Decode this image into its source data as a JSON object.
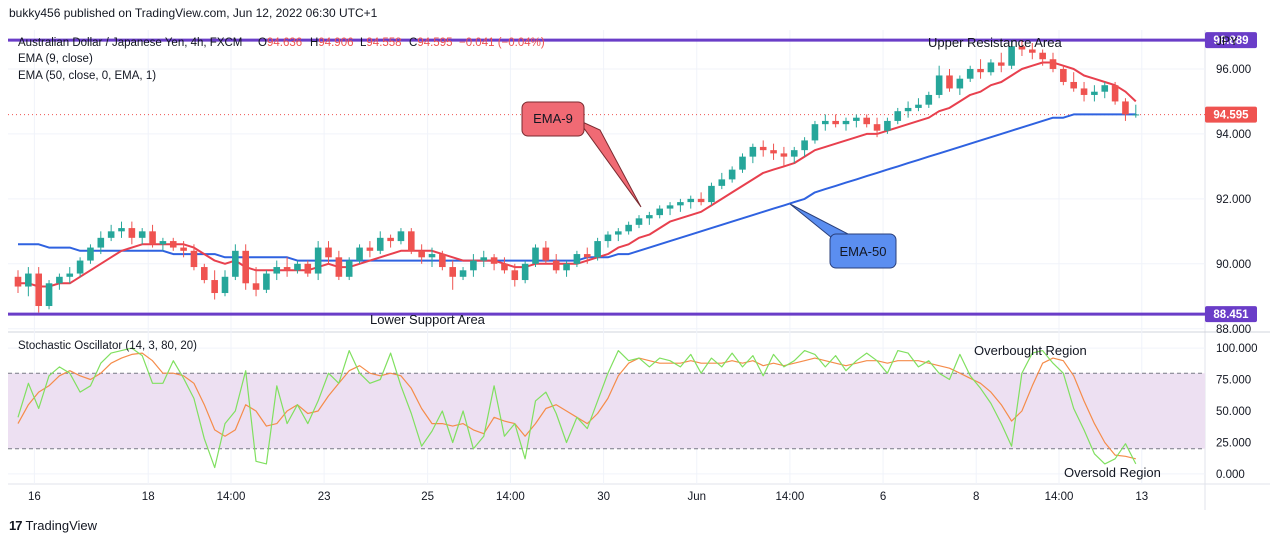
{
  "header": {
    "published": "bukky456 published on TradingView.com, Jun 12, 2022 06:30 UTC+1"
  },
  "footer": {
    "brand": "TradingView",
    "logo_glyph": "17"
  },
  "symbol_info": {
    "name": "Australian Dollar / Japanese Yen, 4h, FXCM",
    "open_label": "O",
    "open": "94.636",
    "high_label": "H",
    "high": "94.906",
    "low_label": "L",
    "low": "94.558",
    "close_label": "C",
    "close": "94.595",
    "change": "−0.041 (−0.04%)"
  },
  "indicators": {
    "ema9_label": "EMA (9, close)",
    "ema50_label": "EMA (50, close, 0, EMA, 1)",
    "stoch_label": "Stochastic Oscillator (14, 3, 80, 20)"
  },
  "colors": {
    "bull": "#26a69a",
    "bear": "#ef5350",
    "ema9": "#e8404e",
    "ema50": "#2f62e0",
    "level": "#6a3dc8",
    "stoch_k": "#80e060",
    "stoch_d": "#f58c4a",
    "zone": "#ede0f2",
    "label_red": "#f06a74",
    "label_blue": "#5b8ef0"
  },
  "chart_data": [
    {
      "type": "candlestick",
      "currency": "JPY",
      "ylim": [
        87.9,
        97.2
      ],
      "y_ticks": [
        "96.000",
        "94.000",
        "92.000",
        "90.000",
        "88.000"
      ],
      "x_ticks": [
        "16",
        "18",
        "14:00",
        "23",
        "25",
        "14:00",
        "30",
        "Jun",
        "14:00",
        "6",
        "8",
        "14:00",
        "13"
      ],
      "levels": [
        {
          "value": 96.889,
          "label": "96.889",
          "annotation": "Upper Resistance Area"
        },
        {
          "value": 88.451,
          "label": "88.451",
          "annotation": "Lower Support Area"
        }
      ],
      "last_price": {
        "value": 94.595,
        "label": "94.595"
      },
      "annotations": {
        "ema9": "EMA-9",
        "ema50": "EMA-50"
      },
      "candles": [
        [
          89.6,
          89.8,
          89.1,
          89.3
        ],
        [
          89.3,
          89.9,
          89.0,
          89.7
        ],
        [
          89.7,
          89.9,
          88.5,
          88.7
        ],
        [
          88.7,
          89.5,
          88.6,
          89.4
        ],
        [
          89.4,
          89.7,
          89.2,
          89.6
        ],
        [
          89.6,
          89.9,
          89.4,
          89.7
        ],
        [
          89.7,
          90.2,
          89.6,
          90.1
        ],
        [
          90.1,
          90.6,
          90.0,
          90.5
        ],
        [
          90.5,
          91.0,
          90.3,
          90.8
        ],
        [
          90.8,
          91.2,
          90.7,
          91.0
        ],
        [
          91.0,
          91.3,
          90.8,
          91.1
        ],
        [
          91.1,
          91.3,
          90.6,
          90.8
        ],
        [
          90.8,
          91.1,
          90.6,
          91.0
        ],
        [
          91.0,
          91.2,
          90.5,
          90.6
        ],
        [
          90.6,
          90.8,
          90.4,
          90.7
        ],
        [
          90.7,
          90.8,
          90.4,
          90.5
        ],
        [
          90.5,
          90.7,
          90.2,
          90.4
        ],
        [
          90.4,
          90.6,
          89.8,
          89.9
        ],
        [
          89.9,
          90.0,
          89.4,
          89.5
        ],
        [
          89.5,
          89.8,
          88.9,
          89.1
        ],
        [
          89.1,
          89.8,
          89.0,
          89.6
        ],
        [
          89.6,
          90.6,
          89.5,
          90.4
        ],
        [
          90.4,
          90.6,
          89.2,
          89.4
        ],
        [
          89.4,
          89.9,
          89.0,
          89.2
        ],
        [
          89.2,
          89.8,
          89.1,
          89.7
        ],
        [
          89.7,
          90.1,
          89.5,
          89.9
        ],
        [
          89.9,
          90.2,
          89.6,
          89.8
        ],
        [
          89.8,
          90.1,
          89.7,
          90.0
        ],
        [
          90.0,
          90.1,
          89.6,
          89.7
        ],
        [
          89.7,
          90.7,
          89.5,
          90.5
        ],
        [
          90.5,
          90.7,
          90.0,
          90.2
        ],
        [
          90.2,
          90.4,
          89.5,
          89.6
        ],
        [
          89.6,
          90.2,
          89.5,
          90.1
        ],
        [
          90.1,
          90.6,
          90.0,
          90.5
        ],
        [
          90.5,
          90.7,
          90.2,
          90.4
        ],
        [
          90.4,
          91.0,
          90.3,
          90.8
        ],
        [
          90.8,
          90.9,
          90.5,
          90.7
        ],
        [
          90.7,
          91.1,
          90.6,
          91.0
        ],
        [
          91.0,
          91.1,
          90.3,
          90.4
        ],
        [
          90.4,
          90.6,
          90.0,
          90.2
        ],
        [
          90.2,
          90.5,
          89.9,
          90.3
        ],
        [
          90.3,
          90.4,
          89.8,
          89.9
        ],
        [
          89.9,
          90.1,
          89.2,
          89.6
        ],
        [
          89.6,
          89.9,
          89.5,
          89.8
        ],
        [
          89.8,
          90.3,
          89.6,
          90.1
        ],
        [
          90.1,
          90.4,
          89.9,
          90.2
        ],
        [
          90.2,
          90.3,
          89.8,
          90.0
        ],
        [
          90.0,
          90.2,
          89.7,
          89.8
        ],
        [
          89.8,
          90.0,
          89.3,
          89.5
        ],
        [
          89.5,
          90.1,
          89.4,
          90.0
        ],
        [
          90.0,
          90.6,
          89.9,
          90.5
        ],
        [
          90.5,
          90.7,
          90.0,
          90.1
        ],
        [
          90.1,
          90.3,
          89.7,
          89.8
        ],
        [
          89.8,
          90.1,
          89.6,
          90.0
        ],
        [
          90.0,
          90.4,
          89.9,
          90.3
        ],
        [
          90.3,
          90.5,
          90.0,
          90.2
        ],
        [
          90.2,
          90.8,
          90.1,
          90.7
        ],
        [
          90.7,
          91.0,
          90.5,
          90.9
        ],
        [
          90.9,
          91.1,
          90.7,
          91.0
        ],
        [
          91.0,
          91.3,
          90.9,
          91.2
        ],
        [
          91.2,
          91.5,
          91.1,
          91.4
        ],
        [
          91.4,
          91.6,
          91.2,
          91.5
        ],
        [
          91.5,
          91.8,
          91.4,
          91.7
        ],
        [
          91.7,
          91.9,
          91.5,
          91.8
        ],
        [
          91.8,
          92.0,
          91.6,
          91.9
        ],
        [
          91.9,
          92.1,
          91.7,
          92.0
        ],
        [
          92.0,
          92.2,
          91.8,
          91.9
        ],
        [
          91.9,
          92.5,
          91.8,
          92.4
        ],
        [
          92.4,
          92.8,
          92.3,
          92.6
        ],
        [
          92.6,
          93.0,
          92.5,
          92.9
        ],
        [
          92.9,
          93.4,
          92.8,
          93.3
        ],
        [
          93.3,
          93.7,
          93.1,
          93.6
        ],
        [
          93.6,
          93.8,
          93.3,
          93.5
        ],
        [
          93.5,
          93.7,
          93.2,
          93.4
        ],
        [
          93.4,
          93.6,
          93.0,
          93.3
        ],
        [
          93.3,
          93.6,
          93.1,
          93.5
        ],
        [
          93.5,
          93.9,
          93.3,
          93.8
        ],
        [
          93.8,
          94.4,
          93.7,
          94.3
        ],
        [
          94.3,
          94.6,
          94.1,
          94.4
        ],
        [
          94.4,
          94.6,
          94.2,
          94.3
        ],
        [
          94.3,
          94.5,
          94.1,
          94.4
        ],
        [
          94.4,
          94.6,
          94.2,
          94.5
        ],
        [
          94.5,
          94.6,
          94.2,
          94.3
        ],
        [
          94.3,
          94.5,
          93.9,
          94.1
        ],
        [
          94.1,
          94.5,
          94.0,
          94.4
        ],
        [
          94.4,
          94.8,
          94.3,
          94.7
        ],
        [
          94.7,
          95.0,
          94.5,
          94.8
        ],
        [
          94.8,
          95.1,
          94.7,
          94.9
        ],
        [
          94.9,
          95.3,
          94.8,
          95.2
        ],
        [
          95.2,
          96.1,
          95.1,
          95.8
        ],
        [
          95.8,
          96.0,
          95.3,
          95.4
        ],
        [
          95.4,
          95.8,
          95.2,
          95.7
        ],
        [
          95.7,
          96.1,
          95.6,
          96.0
        ],
        [
          96.0,
          96.3,
          95.7,
          95.9
        ],
        [
          95.9,
          96.3,
          95.8,
          96.2
        ],
        [
          96.2,
          96.5,
          95.9,
          96.1
        ],
        [
          96.1,
          96.9,
          96.0,
          96.7
        ],
        [
          96.7,
          96.9,
          96.4,
          96.6
        ],
        [
          96.6,
          96.8,
          96.3,
          96.5
        ],
        [
          96.5,
          96.6,
          96.1,
          96.3
        ],
        [
          96.3,
          96.5,
          95.9,
          96.0
        ],
        [
          96.0,
          96.1,
          95.5,
          95.6
        ],
        [
          95.6,
          95.9,
          95.3,
          95.4
        ],
        [
          95.4,
          95.6,
          95.0,
          95.2
        ],
        [
          95.2,
          95.5,
          95.0,
          95.3
        ],
        [
          95.3,
          95.6,
          95.1,
          95.5
        ],
        [
          95.5,
          95.6,
          94.9,
          95.0
        ],
        [
          95.0,
          95.1,
          94.4,
          94.6
        ],
        [
          94.6,
          94.9,
          94.5,
          94.6
        ]
      ],
      "ema9": [
        89.4,
        89.4,
        89.3,
        89.3,
        89.4,
        89.4,
        89.6,
        89.8,
        90.0,
        90.2,
        90.4,
        90.5,
        90.6,
        90.6,
        90.6,
        90.6,
        90.6,
        90.5,
        90.3,
        90.1,
        90.0,
        90.1,
        89.9,
        89.8,
        89.8,
        89.8,
        89.8,
        89.8,
        89.8,
        89.9,
        90.0,
        89.9,
        89.9,
        90.0,
        90.1,
        90.2,
        90.3,
        90.4,
        90.4,
        90.4,
        90.4,
        90.3,
        90.2,
        90.1,
        90.1,
        90.1,
        90.1,
        90.0,
        89.9,
        89.9,
        90.0,
        90.0,
        90.0,
        90.0,
        90.0,
        90.1,
        90.2,
        90.3,
        90.5,
        90.6,
        90.8,
        90.9,
        91.1,
        91.3,
        91.4,
        91.5,
        91.6,
        91.8,
        92.0,
        92.2,
        92.4,
        92.6,
        92.8,
        92.9,
        93.0,
        93.1,
        93.3,
        93.5,
        93.6,
        93.7,
        93.8,
        93.9,
        94.0,
        94.0,
        94.1,
        94.2,
        94.3,
        94.4,
        94.5,
        94.7,
        94.8,
        95.0,
        95.2,
        95.3,
        95.5,
        95.6,
        95.8,
        96.0,
        96.1,
        96.2,
        96.2,
        96.1,
        96.0,
        95.8,
        95.7,
        95.6,
        95.5,
        95.3,
        95.0
      ],
      "ema50": [
        90.6,
        90.6,
        90.6,
        90.5,
        90.5,
        90.5,
        90.4,
        90.4,
        90.4,
        90.4,
        90.4,
        90.4,
        90.4,
        90.4,
        90.4,
        90.3,
        90.3,
        90.3,
        90.3,
        90.3,
        90.2,
        90.2,
        90.2,
        90.2,
        90.2,
        90.2,
        90.2,
        90.1,
        90.1,
        90.1,
        90.1,
        90.1,
        90.1,
        90.1,
        90.1,
        90.1,
        90.1,
        90.1,
        90.1,
        90.1,
        90.1,
        90.1,
        90.1,
        90.1,
        90.1,
        90.1,
        90.1,
        90.1,
        90.1,
        90.1,
        90.1,
        90.1,
        90.1,
        90.1,
        90.1,
        90.2,
        90.2,
        90.2,
        90.3,
        90.3,
        90.4,
        90.5,
        90.6,
        90.7,
        90.8,
        90.9,
        91.0,
        91.1,
        91.2,
        91.3,
        91.4,
        91.5,
        91.6,
        91.7,
        91.8,
        91.9,
        92.0,
        92.2,
        92.3,
        92.4,
        92.5,
        92.6,
        92.7,
        92.8,
        92.9,
        93.0,
        93.1,
        93.2,
        93.3,
        93.4,
        93.5,
        93.6,
        93.7,
        93.8,
        93.9,
        94.0,
        94.1,
        94.2,
        94.3,
        94.4,
        94.5,
        94.5,
        94.6,
        94.6,
        94.6,
        94.6,
        94.6,
        94.6,
        94.6
      ]
    },
    {
      "type": "line",
      "name": "Stochastic Oscillator (14, 3, 80, 20)",
      "ylim": [
        -8,
        108
      ],
      "y_ticks": [
        "100.000",
        "75.000",
        "50.000",
        "25.000",
        "0.000"
      ],
      "bands": {
        "upper": 80,
        "lower": 20
      },
      "annotations": {
        "overbought": "Overbought Region",
        "oversold": "Oversold Region"
      },
      "k": [
        45,
        72,
        52,
        78,
        85,
        80,
        65,
        70,
        88,
        96,
        98,
        100,
        94,
        72,
        72,
        90,
        76,
        60,
        28,
        5,
        40,
        50,
        82,
        10,
        8,
        70,
        40,
        55,
        40,
        58,
        80,
        72,
        98,
        80,
        72,
        75,
        96,
        70,
        48,
        22,
        34,
        50,
        25,
        50,
        20,
        30,
        70,
        30,
        40,
        12,
        58,
        65,
        48,
        25,
        45,
        36,
        58,
        80,
        98,
        90,
        92,
        85,
        92,
        90,
        85,
        95,
        80,
        92,
        85,
        96,
        85,
        94,
        78,
        95,
        85,
        90,
        98,
        95,
        85,
        94,
        82,
        90,
        96,
        90,
        80,
        98,
        96,
        85,
        90,
        80,
        75,
        95,
        78,
        68,
        56,
        40,
        22,
        80,
        96,
        98,
        88,
        80,
        52,
        35,
        16,
        8,
        12,
        24,
        8
      ],
      "d": [
        40,
        55,
        65,
        70,
        78,
        82,
        78,
        75,
        80,
        88,
        92,
        95,
        96,
        90,
        80,
        80,
        78,
        72,
        55,
        35,
        30,
        35,
        55,
        50,
        38,
        40,
        50,
        55,
        48,
        50,
        62,
        72,
        82,
        86,
        80,
        78,
        80,
        78,
        68,
        52,
        40,
        40,
        38,
        40,
        35,
        32,
        45,
        42,
        40,
        30,
        40,
        52,
        55,
        50,
        45,
        40,
        48,
        60,
        78,
        88,
        92,
        90,
        88,
        88,
        88,
        90,
        88,
        88,
        88,
        90,
        88,
        90,
        86,
        88,
        86,
        88,
        90,
        92,
        90,
        88,
        86,
        88,
        90,
        90,
        88,
        90,
        90,
        90,
        88,
        86,
        84,
        80,
        76,
        72,
        65,
        55,
        42,
        50,
        70,
        88,
        92,
        90,
        78,
        58,
        40,
        25,
        15,
        14,
        12
      ]
    }
  ]
}
